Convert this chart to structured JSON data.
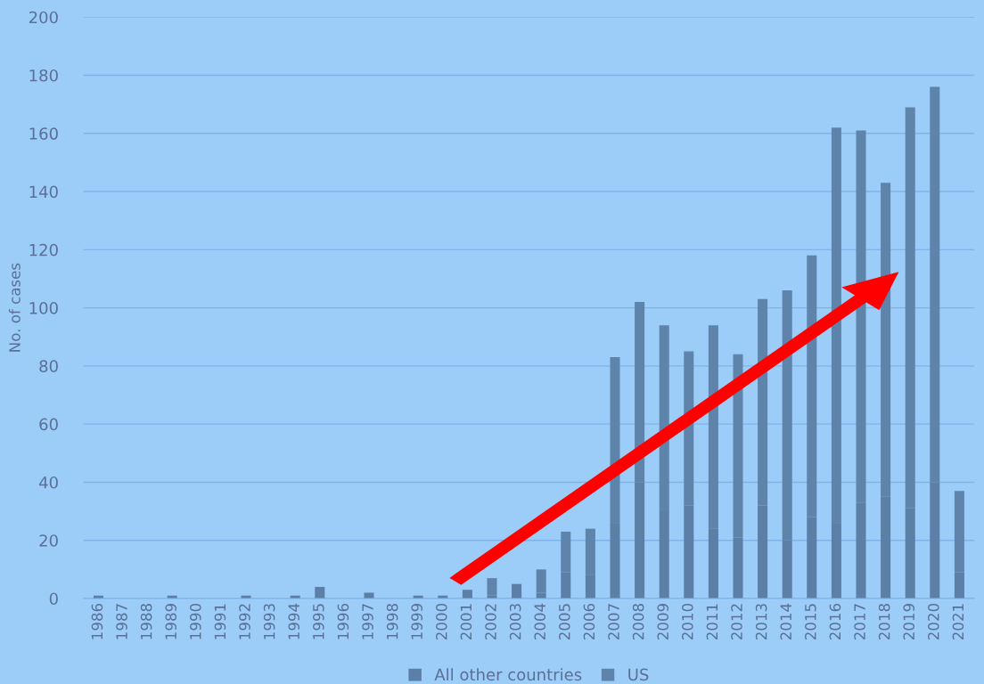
{
  "chart_data": {
    "type": "bar",
    "stacked": true,
    "ylabel": "No. of cases",
    "categories": [
      "1986",
      "1987",
      "1988",
      "1989",
      "1990",
      "1991",
      "1992",
      "1993",
      "1994",
      "1995",
      "1996",
      "1997",
      "1998",
      "1999",
      "2000",
      "2001",
      "2002",
      "2003",
      "2004",
      "2005",
      "2006",
      "2007",
      "2008",
      "2009",
      "2010",
      "2011",
      "2012",
      "2013",
      "2014",
      "2015",
      "2016",
      "2017",
      "2018",
      "2019",
      "2020",
      "2021"
    ],
    "series": [
      {
        "name": "All other countries",
        "color": "#5b7fa6",
        "values": [
          1,
          0,
          0,
          1,
          0,
          0,
          1,
          0,
          1,
          4,
          0,
          2,
          0,
          1,
          1,
          3,
          1,
          5,
          2,
          9,
          8,
          26,
          40,
          30,
          32,
          24,
          21,
          32,
          20,
          28,
          26,
          33,
          35,
          31,
          40,
          9
        ]
      },
      {
        "name": "US",
        "color": "#5e84ab",
        "values": [
          0,
          0,
          0,
          0,
          0,
          0,
          0,
          0,
          0,
          0,
          0,
          0,
          0,
          0,
          0,
          0,
          6,
          0,
          8,
          14,
          16,
          57,
          62,
          64,
          53,
          70,
          63,
          71,
          86,
          90,
          136,
          128,
          108,
          138,
          136,
          28
        ]
      }
    ],
    "ylim": [
      0,
      200
    ],
    "yticks": [
      0,
      20,
      40,
      60,
      80,
      100,
      120,
      140,
      160,
      180,
      200
    ],
    "grid": "y",
    "legend": "bottom"
  }
}
